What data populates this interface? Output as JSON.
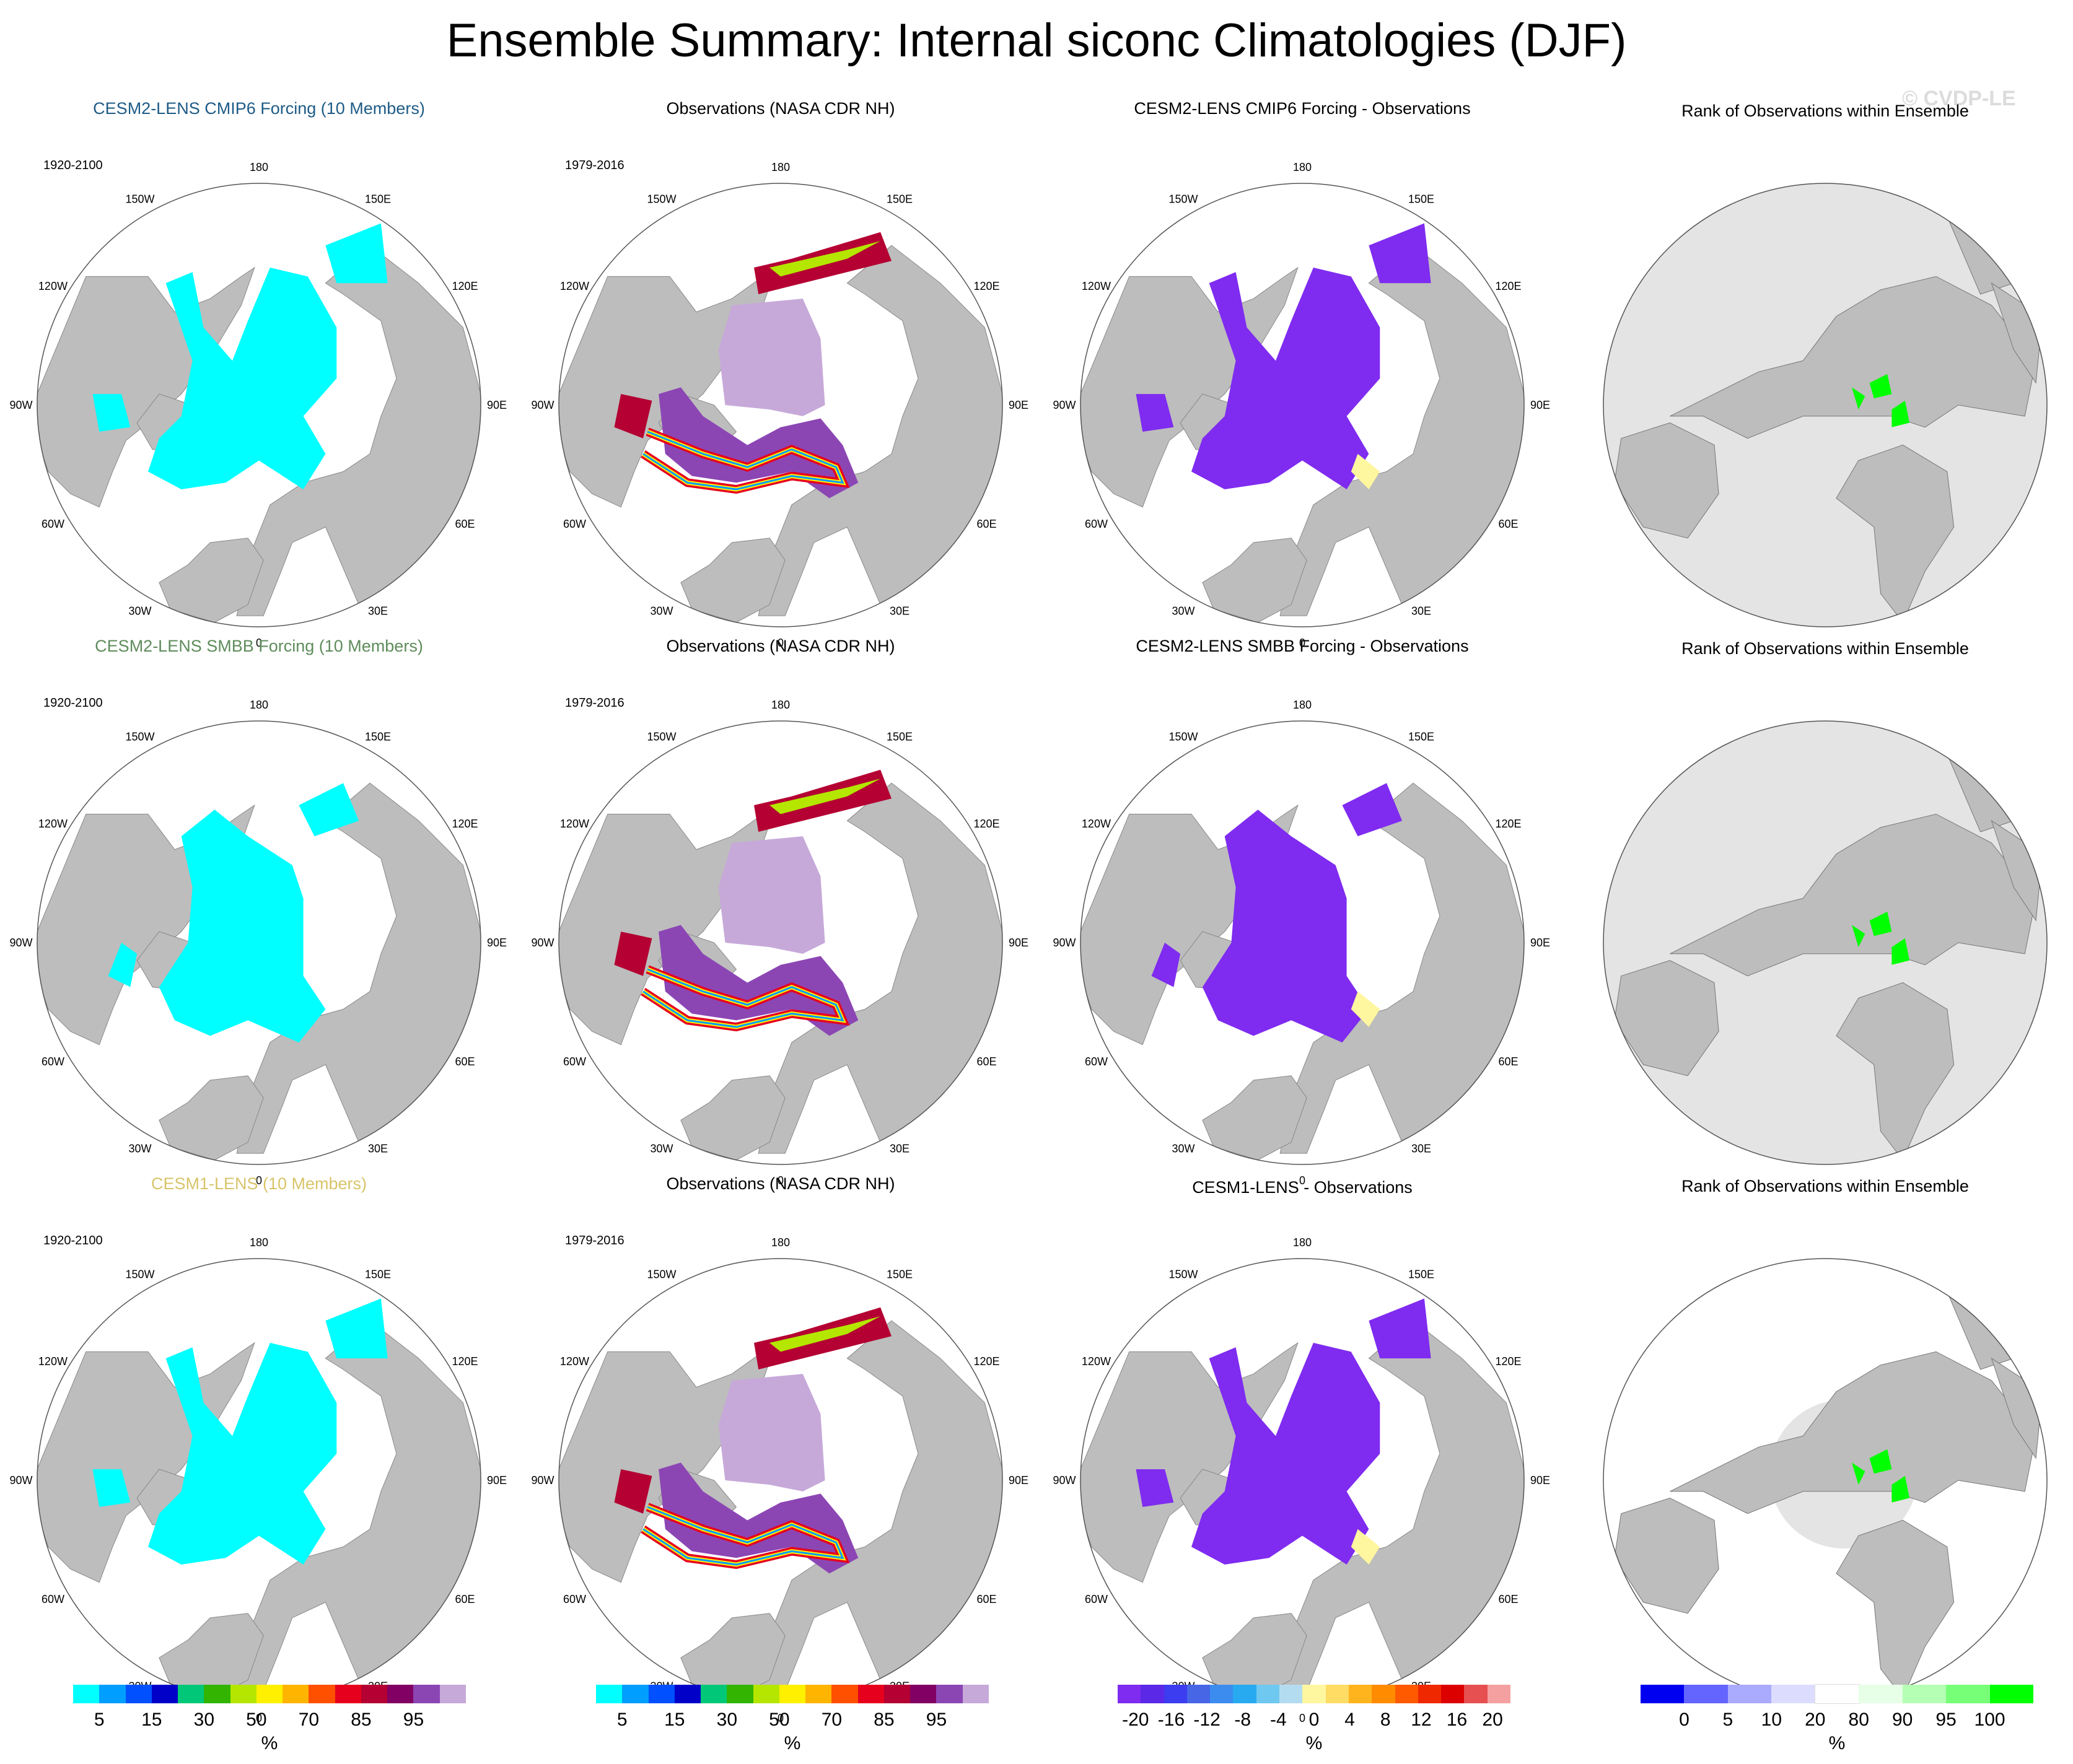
{
  "title": "Ensemble Summary: Internal siconc Climatologies (DJF)",
  "watermark": "© CVDP-LE",
  "colors": {
    "land": "#bdbdbd",
    "ocean": "#ffffff",
    "rank_bg": "#e4e4e4",
    "ice_model": "#00ffff",
    "ice_obs_core": "#c6a9d9",
    "diff_neg": "#7f2bf0",
    "rank_green": "#00ff00"
  },
  "rows": [
    {
      "model_title": "CESM2-LENS CMIP6 Forcing (10 Members)",
      "model_title_color": "#1e5b86",
      "model_period": "1920-2100",
      "obs_title": "Observations (NASA CDR NH)",
      "obs_period": "1979-2016",
      "diff_title": "CESM2-LENS CMIP6 Forcing - Observations",
      "rank_title": "Rank of Observations within Ensemble"
    },
    {
      "model_title": "CESM2-LENS SMBB Forcing (10 Members)",
      "model_title_color": "#5e8c5b",
      "model_period": "1920-2100",
      "obs_title": "Observations (NASA CDR NH)",
      "obs_period": "1979-2016",
      "diff_title": "CESM2-LENS SMBB Forcing - Observations",
      "rank_title": "Rank of Observations within Ensemble"
    },
    {
      "model_title": "CESM1-LENS (10 Members)",
      "model_title_color": "#d8c46a",
      "model_period": "1920-2100",
      "obs_title": "Observations (NASA CDR NH)",
      "obs_period": "1979-2016",
      "diff_title": "CESM1-LENS - Observations",
      "rank_title": "Rank of Observations within Ensemble"
    }
  ],
  "longitude_labels": [
    "180",
    "150E",
    "120E",
    "90E",
    "60E",
    "30E",
    "0",
    "30W",
    "60W",
    "90W",
    "120W",
    "150W"
  ],
  "colorbars": {
    "concentration": {
      "colors": [
        "#00ffff",
        "#009eff",
        "#0050ff",
        "#0000c8",
        "#00c878",
        "#32b400",
        "#b4e600",
        "#fff000",
        "#ffb400",
        "#ff5000",
        "#e6001e",
        "#b40032",
        "#820064",
        "#8c46b4",
        "#c6a9d9"
      ],
      "ticks": [
        "5",
        "15",
        "30",
        "50",
        "70",
        "85",
        "95"
      ],
      "unit": "%"
    },
    "difference": {
      "colors": [
        "#7f2bf0",
        "#5a28e6",
        "#3c3cf0",
        "#4666e6",
        "#3c8cf0",
        "#28aaf0",
        "#6ec8f0",
        "#b4dcf0",
        "#fff6a0",
        "#ffdc64",
        "#ffb41e",
        "#ff8c00",
        "#ff5a00",
        "#f02800",
        "#dc0000",
        "#e65050",
        "#f5a0a0"
      ],
      "ticks": [
        "-20",
        "-16",
        "-12",
        "-8",
        "-4",
        "0",
        "4",
        "8",
        "12",
        "16",
        "20"
      ],
      "unit": "%"
    },
    "rank": {
      "colors": [
        "#0000f0",
        "#6464ff",
        "#aaaaff",
        "#dcdcff",
        "#ffffff",
        "#e6ffe6",
        "#b4ffb4",
        "#78ff78",
        "#00ff00"
      ],
      "ticks": [
        "0",
        "5",
        "10",
        "20",
        "80",
        "90",
        "95",
        "100"
      ],
      "unit": "%"
    }
  }
}
